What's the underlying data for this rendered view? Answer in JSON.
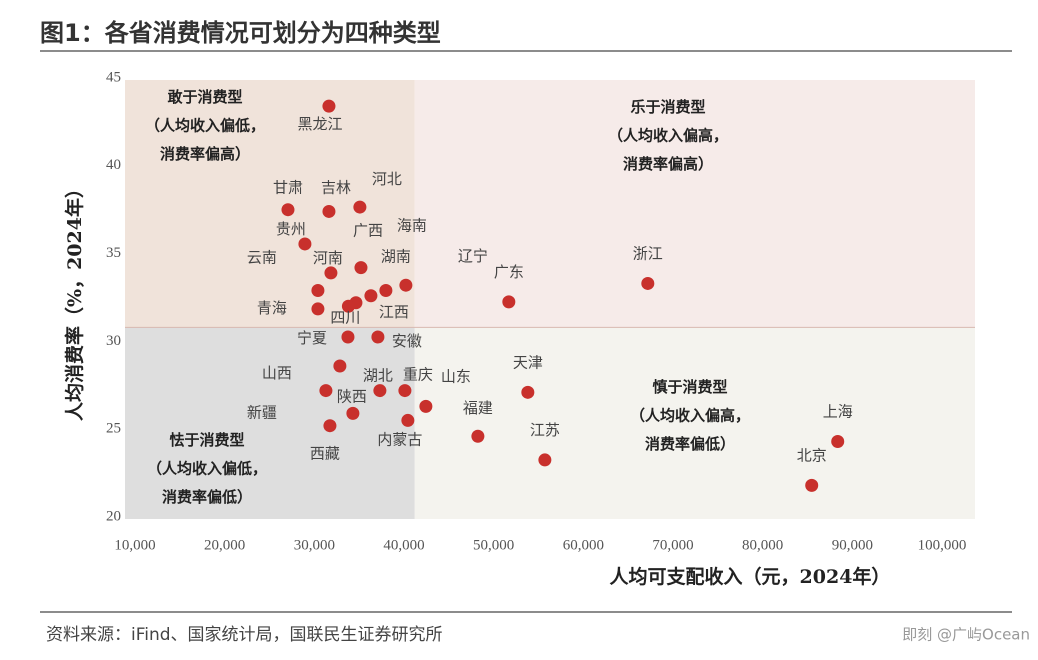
{
  "chart_data": {
    "type": "scatter",
    "title": "图1：各省消费情况可划分为四种类型",
    "source": "资料来源：iFind、国家统计局，国联民生证券研究所",
    "watermark": "即刻 @广屿Ocean",
    "x_label": "人均可支配收入（元，2024年）",
    "y_label": "人均消费率（%，2024年）",
    "color": "#c8302c",
    "point_labels": [
      "黑龙江",
      "甘肃",
      "吉林",
      "河北",
      "贵州",
      "广西",
      "河南",
      "云南",
      "海南",
      "辽宁",
      "湖南",
      "江西",
      "四川",
      "青海",
      "宁夏",
      "安徽",
      "山西",
      "新疆",
      "湖北",
      "重庆",
      "山东",
      "陕西",
      "西藏",
      "内蒙古",
      "福建",
      "江苏",
      "天津",
      "上海",
      "北京",
      "广东",
      "浙江"
    ],
    "x": [
      31630,
      27060,
      31630,
      35080,
      28950,
      35200,
      31850,
      30400,
      37980,
      40210,
      36310,
      34640,
      33800,
      30400,
      33750,
      37090,
      32850,
      31290,
      37310,
      40100,
      42440,
      34300,
      31740,
      40430,
      48240,
      55710,
      53810,
      88370,
      85470,
      51690,
      67190
    ],
    "values": [
      43.4,
      37.5,
      37.4,
      37.65,
      35.55,
      34.2,
      33.9,
      32.9,
      32.9,
      33.2,
      32.6,
      32.2,
      32.0,
      31.85,
      30.25,
      30.25,
      28.6,
      27.2,
      27.2,
      27.2,
      26.3,
      25.9,
      25.2,
      25.5,
      24.6,
      23.25,
      27.1,
      24.3,
      21.8,
      32.25,
      33.3
    ],
    "x_divider": 41200,
    "y_divider": 30.8,
    "quadrants": [
      {
        "lines": [
          "敢于消费型",
          "（人均收入偏低，",
          "消费率偏高）"
        ],
        "color": "#f0e3da"
      },
      {
        "lines": [
          "乐于消费型",
          "（人均收入偏高，",
          "消费率偏高）"
        ],
        "color": "#f6ebe9"
      },
      {
        "lines": [
          "怯于消费型",
          "（人均收入偏低，",
          "消费率偏低）"
        ],
        "color": "#dedede"
      },
      {
        "lines": [
          "慎于消费型",
          "（人均收入偏高，",
          "消费率偏低）"
        ],
        "color": "#f4f3ee"
      }
    ],
    "xlim": [
      10000,
      100000
    ],
    "xticks": [
      {
        "value": 10000,
        "label": "10,000"
      },
      {
        "value": 20000,
        "label": "20,000"
      },
      {
        "value": 30000,
        "label": "30,000"
      },
      {
        "value": 40000,
        "label": "40,000"
      },
      {
        "value": 50000,
        "label": "50,000"
      },
      {
        "value": 60000,
        "label": "60,000"
      },
      {
        "value": 70000,
        "label": "70,000"
      },
      {
        "value": 80000,
        "label": "80,000"
      },
      {
        "value": 90000,
        "label": "90,000"
      },
      {
        "value": 100000,
        "label": "100,000"
      }
    ],
    "ylim": [
      20,
      45
    ],
    "yticks": [
      20,
      25,
      30,
      35,
      40,
      45
    ]
  }
}
